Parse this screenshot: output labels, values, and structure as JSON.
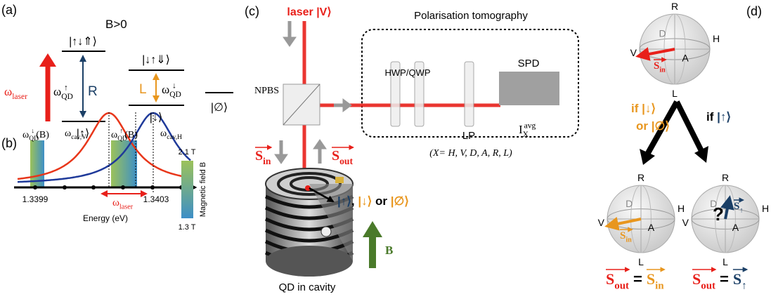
{
  "panel_a": {
    "label": "(a)",
    "condition": "B>0",
    "trion_up": "|↑↓⇑⟩",
    "trion_down": "|↓↑⇓⟩",
    "ground_up": "|↑⟩",
    "ground_down": "|↓⟩",
    "empty": "|∅⟩",
    "laser": {
      "base": "ω",
      "sub": "laser"
    },
    "transition_up": {
      "base": "ω",
      "sub": "QD",
      "sup": "↑"
    },
    "transition_down": {
      "base": "ω",
      "sub": "QD",
      "sup": "↓"
    },
    "pol_up": "R",
    "pol_down": "L"
  },
  "panel_b": {
    "label": "(b)",
    "qd_down": {
      "base": "ω",
      "sub": "QD",
      "sup": "↓",
      "suffix": "(B)"
    },
    "cav_v": {
      "base": "ω",
      "sub": "cav,V"
    },
    "qd_up": {
      "base": "ω",
      "sub": "QD",
      "sup": "↑",
      "suffix": "(B)"
    },
    "cav_h": {
      "base": "ω",
      "sub": "cav,H"
    },
    "colorbar_max": "2.1 T",
    "colorbar_min": "1.3 T",
    "colorbar_title": "Magnetic field B",
    "tick_left": "1.3399",
    "tick_right": "1.3403",
    "laser": {
      "base": "ω",
      "sub": "laser"
    },
    "x_label": "Energy (eV)"
  },
  "panel_c": {
    "label": "(c)",
    "laser": "laser |V⟩",
    "tomography": "Polarisation tomography",
    "npbs": "NPBS",
    "waveplates": "HWP/QWP",
    "detector": "SPD",
    "polariser": "LP",
    "intensity": {
      "base": "I",
      "sub": "X",
      "sup": "avg"
    },
    "bases": "(X= H, V, D, A, R, L)",
    "s_in": {
      "base": "S",
      "sub": "in"
    },
    "s_out": {
      "base": "S",
      "sub": "out"
    },
    "states": [
      {
        "text": "|↑⟩",
        "color": "#1b3f66"
      },
      {
        "text": ", ",
        "color": "#000000"
      },
      {
        "text": "|↓⟩",
        "color": "#e8961e"
      },
      {
        "text": " or ",
        "color": "#000000"
      },
      {
        "text": "|∅⟩",
        "color": "#e8961e"
      }
    ],
    "field": "B",
    "caption": "QD in cavity"
  },
  "panel_d": {
    "label": "(d)",
    "spheres": [
      {
        "axes": [
          "R",
          "H",
          "D",
          "V",
          "A",
          "L"
        ],
        "vector": {
          "base": "S",
          "sub": "in"
        }
      },
      {
        "axes": [
          "R",
          "H",
          "D",
          "V",
          "A",
          "L"
        ],
        "vector": {
          "base": "S",
          "sub": "in"
        }
      },
      {
        "axes": [
          "R",
          "H",
          "D",
          "V",
          "A",
          "L"
        ],
        "vector": {
          "base": "S",
          "sub": "↑"
        },
        "unknown": "?"
      }
    ],
    "branch_left": [
      [
        {
          "text": "if |↓⟩",
          "color": "#e8961e"
        }
      ],
      [
        {
          "text": "or |∅⟩",
          "color": "#e8961e"
        }
      ]
    ],
    "branch_right": [
      {
        "text": "if ",
        "color": "#000000"
      },
      {
        "text": "|↑⟩",
        "color": "#1b3f66"
      }
    ],
    "equation_left": {
      "lhs": {
        "base": "S",
        "sub": "out"
      },
      "op": "=",
      "rhs": {
        "base": "S",
        "sub": "in"
      }
    },
    "equation_right": {
      "lhs": {
        "base": "S",
        "sub": "out"
      },
      "op": "=",
      "rhs": {
        "base": "S",
        "sub": "↑"
      }
    }
  }
}
